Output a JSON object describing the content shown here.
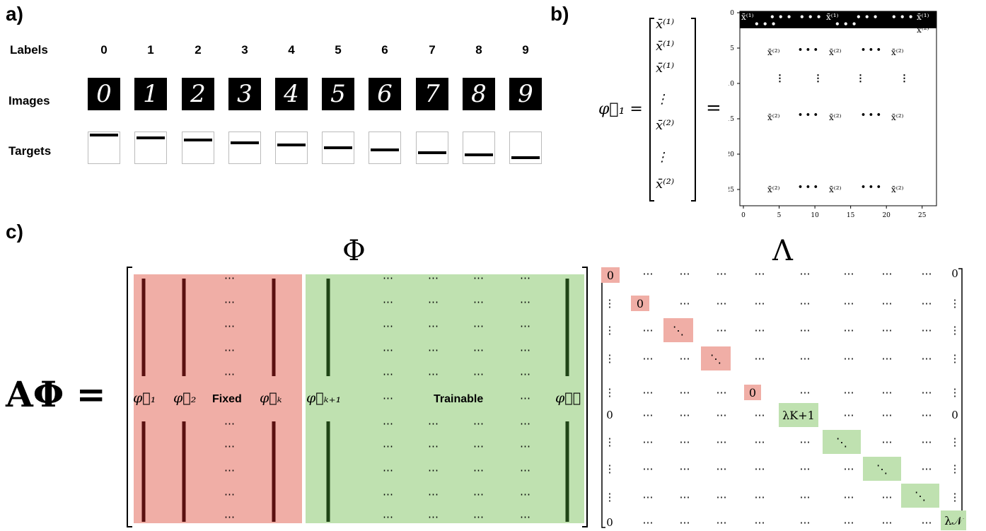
{
  "panel_a": {
    "label": "a)",
    "row_labels": {
      "labels": "Labels",
      "images": "Images",
      "targets": "Targets"
    },
    "digits": [
      "0",
      "1",
      "2",
      "3",
      "4",
      "5",
      "6",
      "7",
      "8",
      "9"
    ],
    "target_levels": [
      0,
      1,
      2,
      3,
      4,
      5,
      6,
      7,
      8,
      9
    ]
  },
  "panel_b": {
    "label": "b)",
    "phi1": "φ⃗₁ =",
    "equals": "=",
    "vector_entries": [
      "x̄⁽¹⁾",
      "x̄⁽¹⁾",
      "x̄⁽¹⁾",
      "⋮",
      "x̄⁽²⁾",
      "⋮",
      "x̄⁽²⁾"
    ],
    "x1": "x̄⁽¹⁾",
    "x2": "x̄⁽²⁾",
    "ticks": [
      "0",
      "5",
      "10",
      "15",
      "20",
      "25"
    ]
  },
  "panel_c": {
    "label": "c)",
    "lhs": "AΦ =",
    "phi_title": "Φ",
    "lambda_title": "Λ",
    "fixed_label": "Fixed",
    "trainable_label": "Trainable",
    "phi_1": "φ⃗₁",
    "phi_2": "φ⃗₂",
    "phi_K": "φ⃗ₖ",
    "phi_K1": "φ⃗ₖ₊₁",
    "phi_N": "φ⃗𝒩",
    "dots": "⋯",
    "vdots": "⋮",
    "ddots": "⋱",
    "zero": "0",
    "lambda_K1": "λK+1",
    "lambda_N": "λ𝒩",
    "colors": {
      "fixed": "#f0aea6",
      "trainable": "#bfe1b0",
      "fixed_line": "#5a1010",
      "trainable_line": "#1f4416"
    }
  }
}
